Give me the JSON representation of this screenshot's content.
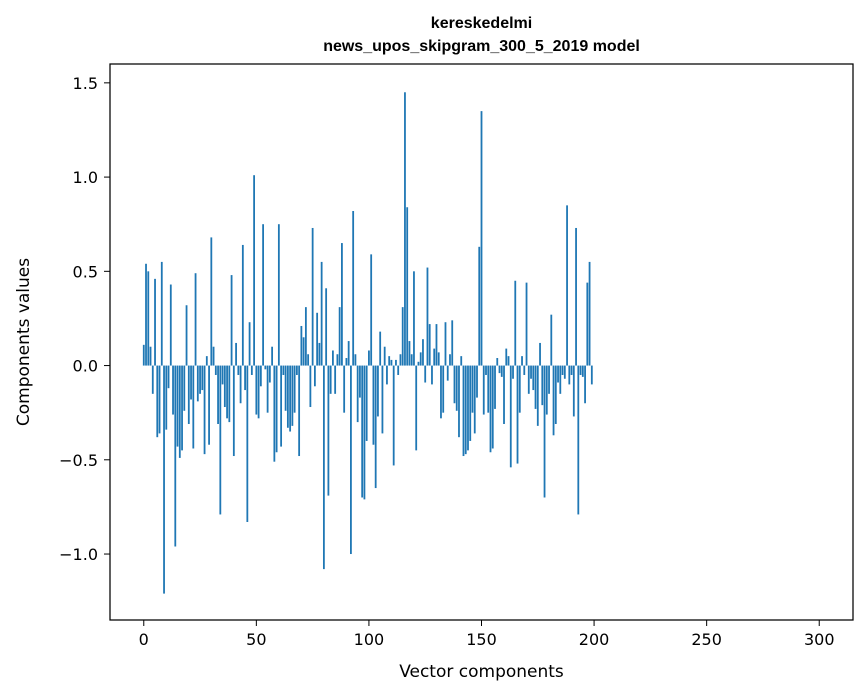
{
  "chart_data": {
    "type": "bar",
    "title_lines": [
      "kereskedelmi",
      "news_upos_skipgram_300_5_2019 model"
    ],
    "xlabel": "Vector components",
    "ylabel": "Components values",
    "xlim": [
      -15,
      315
    ],
    "ylim": [
      -1.35,
      1.6
    ],
    "xticks": [
      0,
      50,
      100,
      150,
      200,
      250,
      300
    ],
    "yticks": [
      -1.0,
      -0.5,
      0.0,
      0.5,
      1.0,
      1.5
    ],
    "ytick_labels": [
      "−1.0",
      "−0.5",
      "0.0",
      "0.5",
      "1.0",
      "1.5"
    ],
    "grid": false,
    "bar_color": "#1f77b4",
    "values": [
      0.11,
      0.54,
      0.5,
      0.1,
      -0.15,
      0.46,
      -0.38,
      -0.36,
      0.55,
      -1.21,
      -0.34,
      -0.12,
      0.43,
      -0.26,
      -0.96,
      -0.43,
      -0.49,
      -0.45,
      -0.24,
      0.32,
      -0.31,
      -0.18,
      -0.44,
      0.49,
      -0.19,
      -0.15,
      -0.13,
      -0.47,
      0.05,
      -0.42,
      0.68,
      0.1,
      -0.05,
      -0.31,
      -0.79,
      -0.1,
      -0.22,
      -0.28,
      -0.3,
      0.48,
      -0.48,
      0.12,
      -0.05,
      -0.2,
      0.64,
      -0.13,
      -0.83,
      0.23,
      -0.05,
      1.01,
      -0.26,
      -0.28,
      -0.11,
      0.75,
      -0.02,
      -0.25,
      -0.09,
      0.1,
      -0.51,
      -0.46,
      0.75,
      -0.43,
      -0.05,
      -0.24,
      -0.33,
      -0.35,
      -0.32,
      -0.25,
      -0.05,
      -0.48,
      0.21,
      0.15,
      0.31,
      0.06,
      -0.22,
      0.73,
      -0.11,
      0.28,
      0.12,
      0.55,
      -1.08,
      0.41,
      -0.69,
      -0.15,
      0.08,
      -0.15,
      0.06,
      0.31,
      0.65,
      -0.25,
      0.04,
      0.13,
      -1.0,
      0.82,
      0.06,
      -0.3,
      -0.17,
      -0.7,
      -0.71,
      -0.4,
      0.08,
      0.59,
      -0.42,
      -0.65,
      -0.27,
      0.18,
      -0.36,
      0.1,
      -0.1,
      0.05,
      0.03,
      -0.53,
      0.03,
      -0.05,
      0.06,
      0.31,
      1.45,
      0.84,
      0.13,
      0.06,
      0.5,
      -0.45,
      0.02,
      0.07,
      0.14,
      -0.09,
      0.52,
      0.22,
      -0.1,
      0.09,
      0.22,
      0.07,
      -0.28,
      -0.25,
      0.23,
      -0.08,
      0.06,
      0.24,
      -0.2,
      -0.24,
      -0.38,
      0.05,
      -0.48,
      -0.47,
      -0.45,
      -0.4,
      -0.25,
      -0.36,
      -0.17,
      0.63,
      1.35,
      -0.26,
      -0.05,
      -0.25,
      -0.46,
      -0.44,
      -0.23,
      0.04,
      -0.04,
      -0.06,
      -0.31,
      0.09,
      0.05,
      -0.54,
      -0.07,
      0.45,
      -0.52,
      -0.25,
      0.05,
      -0.05,
      0.44,
      -0.15,
      -0.07,
      -0.13,
      -0.23,
      -0.32,
      0.12,
      -0.21,
      -0.7,
      -0.26,
      -0.15,
      0.27,
      -0.37,
      -0.31,
      -0.09,
      -0.15,
      -0.05,
      -0.07,
      0.85,
      -0.1,
      -0.05,
      -0.27,
      0.73,
      -0.79,
      -0.05,
      -0.06,
      -0.2,
      0.44,
      0.55,
      -0.1
    ]
  }
}
